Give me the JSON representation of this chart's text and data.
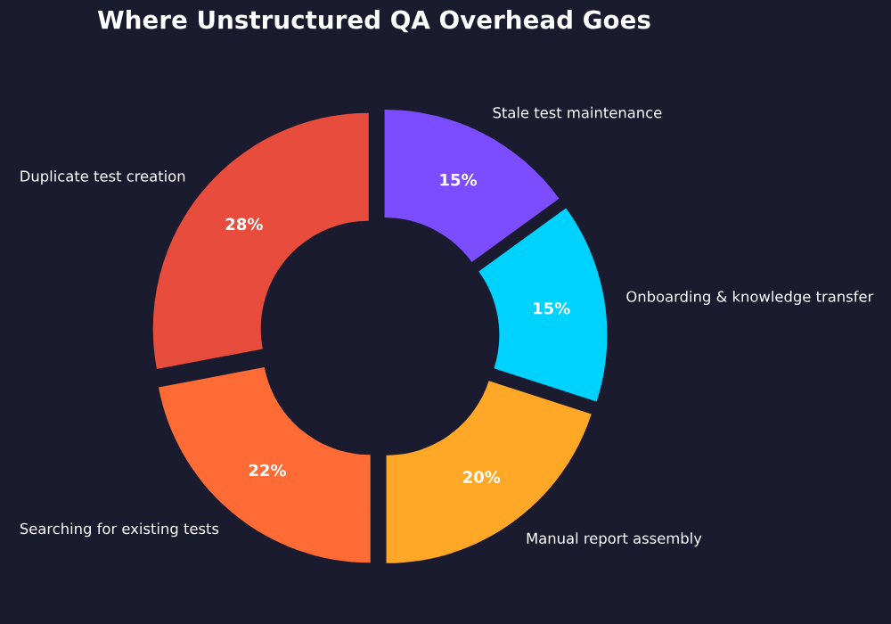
{
  "chart_data": {
    "type": "donut",
    "title": "Where Unstructured QA Overhead Goes",
    "categories": [
      "Stale test maintenance",
      "Onboarding & knowledge transfer",
      "Manual report assembly",
      "Searching for existing tests",
      "Duplicate test creation"
    ],
    "values": [
      15,
      15,
      20,
      22,
      28
    ],
    "colors": [
      "#7c4dff",
      "#00d2ff",
      "#ffa726",
      "#ff6b35",
      "#e74c3c"
    ],
    "value_labels": [
      "15%",
      "15%",
      "20%",
      "22%",
      "28%"
    ],
    "legend": false
  }
}
